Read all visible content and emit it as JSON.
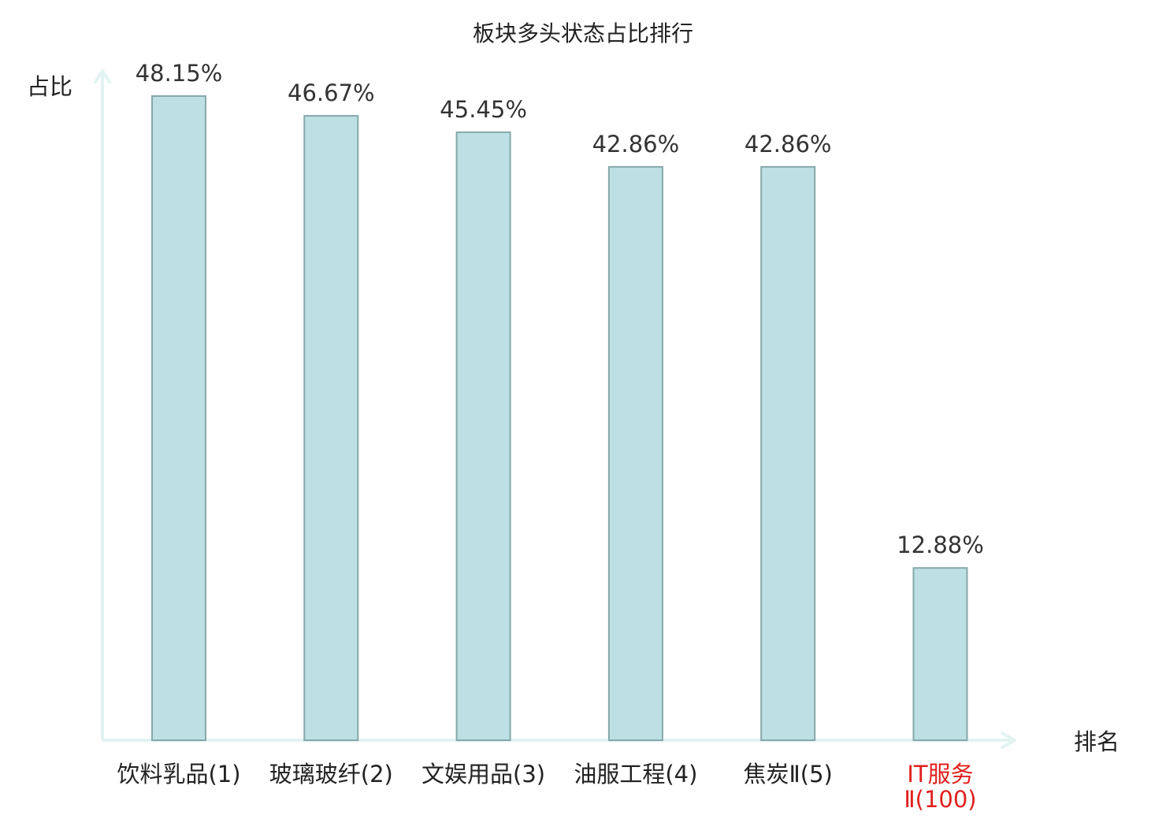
{
  "chart_data": {
    "type": "bar",
    "title": "板块多头状态占比排行",
    "xlabel": "排名",
    "ylabel": "占比",
    "categories": [
      {
        "name": "饮料乳品",
        "rank": "(1)",
        "highlight": false
      },
      {
        "name": "玻璃玻纤",
        "rank": "(2)",
        "highlight": false
      },
      {
        "name": "文娱用品",
        "rank": "(3)",
        "highlight": false
      },
      {
        "name": "油服工程",
        "rank": "(4)",
        "highlight": false
      },
      {
        "name": "焦炭Ⅱ",
        "rank": "(5)",
        "highlight": false
      },
      {
        "name": "IT服务",
        "rank": "Ⅱ(100)",
        "highlight": true
      }
    ],
    "values": [
      48.15,
      46.67,
      45.45,
      42.86,
      42.86,
      12.88
    ],
    "value_labels": [
      "48.15%",
      "46.67%",
      "45.45%",
      "42.86%",
      "42.86%",
      "12.88%"
    ],
    "unit": "%",
    "ylim": [
      0,
      48.15
    ],
    "grid": false,
    "colors": {
      "bar_fill": "#bce0e3",
      "bar_stroke": "#86a8aa",
      "axis": "#e2f3f1",
      "text": "#222222",
      "value_text": "#333333",
      "highlight_text": "#e0201e"
    }
  }
}
